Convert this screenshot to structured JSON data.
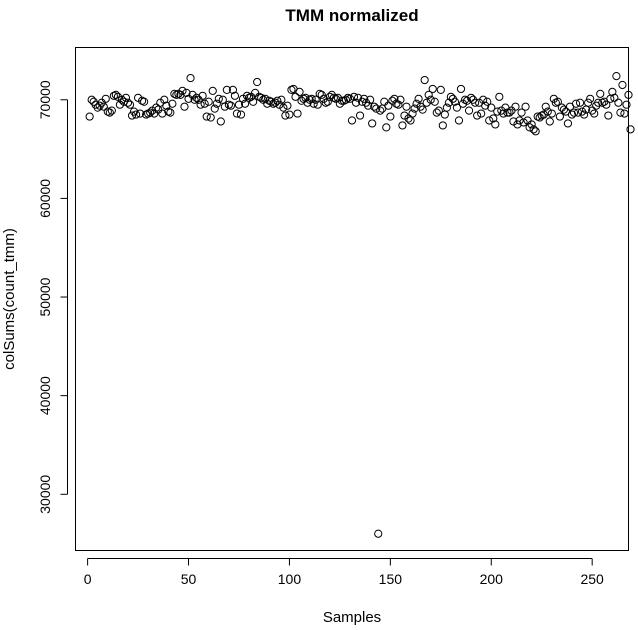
{
  "chart_data": {
    "type": "scatter",
    "title": "TMM normalized",
    "xlabel": "Samples",
    "ylabel": "colSums(count_tmm)",
    "xlim": [
      -6,
      268
    ],
    "ylim": [
      24300,
      75300
    ],
    "xticks": [
      0,
      50,
      100,
      150,
      200,
      250
    ],
    "yticks": [
      30000,
      40000,
      50000,
      60000,
      70000
    ],
    "grid": false,
    "legend": "none",
    "point_color": "#000000",
    "y": [
      68300,
      70000,
      69800,
      69500,
      69200,
      69400,
      69700,
      69300,
      70100,
      68800,
      68700,
      68900,
      70400,
      70500,
      70300,
      69500,
      70000,
      69800,
      70200,
      69700,
      69500,
      68400,
      68800,
      68500,
      70200,
      68600,
      69900,
      69800,
      68500,
      68600,
      68700,
      68900,
      68600,
      69200,
      69000,
      69700,
      68600,
      70000,
      69400,
      68800,
      68700,
      69600,
      70600,
      70500,
      70600,
      70500,
      70900,
      69300,
      70700,
      70100,
      72200,
      70500,
      70000,
      70200,
      70000,
      69500,
      70400,
      69600,
      68300,
      69800,
      68200,
      70900,
      69100,
      69600,
      70100,
      67800,
      70000,
      69300,
      71000,
      69500,
      69400,
      71000,
      70400,
      68600,
      69500,
      68500,
      70100,
      69600,
      70400,
      70200,
      70300,
      69800,
      70700,
      71800,
      70300,
      70200,
      70000,
      70100,
      69600,
      69900,
      69800,
      69600,
      69700,
      69900,
      69500,
      70000,
      69200,
      68400,
      69400,
      68500,
      71000,
      71100,
      70300,
      68600,
      70800,
      69900,
      70100,
      70200,
      69700,
      70000,
      70100,
      69600,
      70000,
      69500,
      70600,
      70500,
      70100,
      69700,
      69800,
      70300,
      70500,
      70200,
      70100,
      70200,
      69600,
      69900,
      69900,
      70000,
      70200,
      70100,
      67900,
      70300,
      69700,
      70200,
      68400,
      69800,
      70100,
      69700,
      69400,
      70000,
      67600,
      69300,
      69100,
      26000,
      68900,
      69100,
      69800,
      67200,
      69400,
      68300,
      69900,
      70100,
      69600,
      69500,
      70000,
      67400,
      68400,
      69300,
      68100,
      67900,
      68600,
      69100,
      69600,
      70100,
      69300,
      69000,
      72000,
      69700,
      70500,
      70000,
      71100,
      69800,
      68700,
      68900,
      71000,
      67400,
      68500,
      69200,
      69700,
      70300,
      70100,
      69800,
      69200,
      67900,
      71100,
      69600,
      70000,
      69900,
      68900,
      70200,
      70000,
      69700,
      68400,
      69700,
      68600,
      70000,
      69400,
      69800,
      67900,
      69200,
      68100,
      67500,
      68800,
      70300,
      68900,
      68600,
      69200,
      68700,
      68700,
      68900,
      67800,
      69300,
      67500,
      67900,
      68700,
      67700,
      69300,
      67900,
      67200,
      67500,
      67000,
      66800,
      68300,
      68200,
      68400,
      68500,
      69300,
      68800,
      67800,
      68600,
      70100,
      69700,
      69800,
      68300,
      69200,
      69000,
      68800,
      67600,
      69300,
      68500,
      68700,
      69600,
      68700,
      69700,
      68800,
      68500,
      69000,
      69700,
      70100,
      68900,
      68600,
      69400,
      69700,
      70600,
      69700,
      69800,
      69500,
      68400,
      70100,
      70800,
      70200,
      72400,
      69700,
      68700,
      71500,
      68600,
      69500,
      70500,
      67000
    ]
  }
}
